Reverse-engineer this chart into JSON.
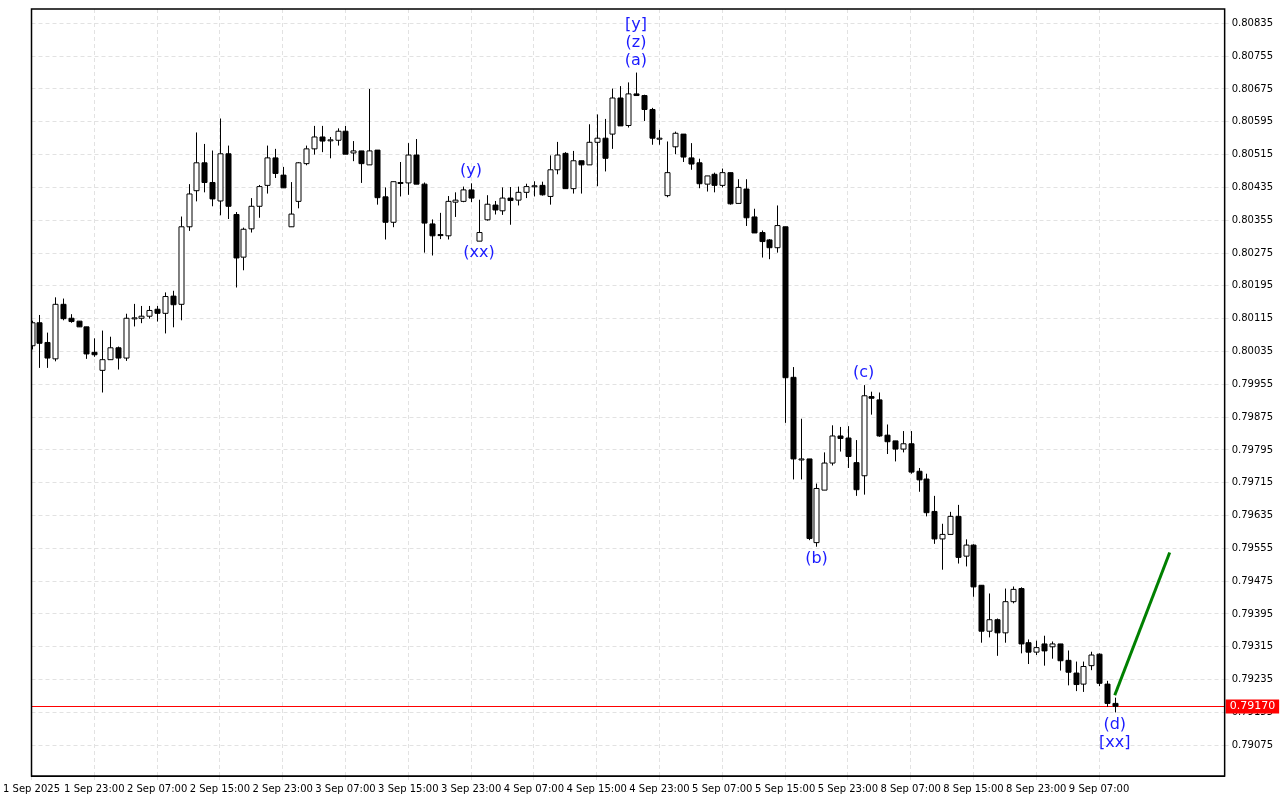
{
  "chart_data": {
    "type": "candlestick",
    "categories": [
      "1 Sep 2025",
      null,
      null,
      null,
      null,
      null,
      null,
      null,
      "1 Sep 23:00",
      null,
      null,
      null,
      null,
      null,
      null,
      null,
      "2 Sep 07:00",
      null,
      null,
      null,
      null,
      null,
      null,
      null,
      "2 Sep 15:00",
      null,
      null,
      null,
      null,
      null,
      null,
      null,
      "2 Sep 23:00",
      null,
      null,
      null,
      null,
      null,
      null,
      null,
      "3 Sep 07:00",
      null,
      null,
      null,
      null,
      null,
      null,
      null,
      "3 Sep 15:00",
      null,
      null,
      null,
      null,
      null,
      null,
      null,
      "3 Sep 23:00",
      null,
      null,
      null,
      null,
      null,
      null,
      null,
      "4 Sep 07:00",
      null,
      null,
      null,
      null,
      null,
      null,
      null,
      "4 Sep 15:00",
      null,
      null,
      null,
      null,
      null,
      null,
      null,
      "4 Sep 23:00",
      null,
      null,
      null,
      null,
      null,
      null,
      null,
      "5 Sep 07:00",
      null,
      null,
      null,
      null,
      null,
      null,
      null,
      "5 Sep 15:00",
      null,
      null,
      null,
      null,
      null,
      null,
      null,
      "5 Sep 23:00",
      null,
      null,
      null,
      null,
      null,
      null,
      null,
      "8 Sep 07:00",
      null,
      null,
      null,
      null,
      null,
      null,
      null,
      "8 Sep 15:00",
      null,
      null,
      null,
      null,
      null,
      null,
      null,
      "8 Sep 23:00",
      null,
      null,
      null,
      null,
      null,
      null,
      null,
      "9 Sep 07:00",
      null,
      null,
      null,
      null,
      null,
      null,
      null,
      null,
      null,
      null,
      null,
      null,
      null,
      null,
      null,
      null
    ],
    "ohlc": [
      [
        0.80049,
        0.8011,
        0.8004,
        0.80105
      ],
      [
        0.80105,
        0.80124,
        0.79995,
        0.80055
      ],
      [
        0.80057,
        0.80081,
        0.79995,
        0.80019
      ],
      [
        0.80017,
        0.80167,
        0.80011,
        0.8015
      ],
      [
        0.8015,
        0.80164,
        0.80111,
        0.80115
      ],
      [
        0.80116,
        0.80126,
        0.80105,
        0.80108
      ],
      [
        0.80109,
        0.80109,
        0.80095,
        0.80095
      ],
      [
        0.80095,
        0.80095,
        0.80017,
        0.80029
      ],
      [
        0.80033,
        0.80067,
        0.80022,
        0.80027
      ],
      [
        0.79989,
        0.80086,
        0.79935,
        0.80015
      ],
      [
        0.80015,
        0.80071,
        0.80015,
        0.80044
      ],
      [
        0.80044,
        0.80047,
        0.79991,
        0.80019
      ],
      [
        0.80019,
        0.80127,
        0.80012,
        0.80116
      ],
      [
        0.80116,
        0.80151,
        0.80096,
        0.80117
      ],
      [
        0.80116,
        0.80146,
        0.80104,
        0.80121
      ],
      [
        0.80121,
        0.80146,
        0.80115,
        0.80135
      ],
      [
        0.80138,
        0.80146,
        0.80108,
        0.80128
      ],
      [
        0.80128,
        0.80179,
        0.80079,
        0.80169
      ],
      [
        0.8017,
        0.80183,
        0.80094,
        0.80149
      ],
      [
        0.8015,
        0.80364,
        0.80111,
        0.80339
      ],
      [
        0.80339,
        0.80443,
        0.80329,
        0.80419
      ],
      [
        0.80427,
        0.80569,
        0.80401,
        0.80495
      ],
      [
        0.80495,
        0.80541,
        0.80423,
        0.80447
      ],
      [
        0.80447,
        0.80525,
        0.80389,
        0.80407
      ],
      [
        0.80402,
        0.80603,
        0.80367,
        0.80517
      ],
      [
        0.80517,
        0.80537,
        0.80358,
        0.80389
      ],
      [
        0.80369,
        0.80375,
        0.80191,
        0.80263
      ],
      [
        0.80265,
        0.80337,
        0.80233,
        0.80333
      ],
      [
        0.80334,
        0.80409,
        0.80325,
        0.80389
      ],
      [
        0.80389,
        0.80441,
        0.80361,
        0.80437
      ],
      [
        0.8044,
        0.80537,
        0.8042,
        0.80507
      ],
      [
        0.80507,
        0.80529,
        0.80458,
        0.80469
      ],
      [
        0.80465,
        0.80485,
        0.80434,
        0.80434
      ],
      [
        0.80339,
        0.80448,
        0.80339,
        0.8037
      ],
      [
        0.80401,
        0.80497,
        0.80384,
        0.80495
      ],
      [
        0.80493,
        0.80537,
        0.80489,
        0.80529
      ],
      [
        0.80529,
        0.80585,
        0.80515,
        0.80558
      ],
      [
        0.80558,
        0.80585,
        0.80521,
        0.80548
      ],
      [
        0.80551,
        0.80558,
        0.80506,
        0.80551
      ],
      [
        0.8055,
        0.80579,
        0.80537,
        0.80572
      ],
      [
        0.80572,
        0.80585,
        0.80516,
        0.80516
      ],
      [
        0.80519,
        0.80548,
        0.80499,
        0.80524
      ],
      [
        0.80524,
        0.80524,
        0.80446,
        0.80493
      ],
      [
        0.8049,
        0.80675,
        0.8049,
        0.80524
      ],
      [
        0.80526,
        0.80526,
        0.80393,
        0.8041
      ],
      [
        0.80412,
        0.80435,
        0.80308,
        0.8035
      ],
      [
        0.8035,
        0.80449,
        0.80338,
        0.80449
      ],
      [
        0.80446,
        0.80497,
        0.80413,
        0.80447
      ],
      [
        0.80446,
        0.80543,
        0.80417,
        0.80514
      ],
      [
        0.80514,
        0.80553,
        0.80443,
        0.80443
      ],
      [
        0.80443,
        0.80447,
        0.80276,
        0.80348
      ],
      [
        0.80346,
        0.80357,
        0.80269,
        0.80317
      ],
      [
        0.8032,
        0.80373,
        0.80309,
        0.80318
      ],
      [
        0.80317,
        0.80414,
        0.80308,
        0.80401
      ],
      [
        0.80399,
        0.80423,
        0.80363,
        0.80404
      ],
      [
        0.80401,
        0.80437,
        0.80399,
        0.80429
      ],
      [
        0.80429,
        0.80445,
        0.80399,
        0.80409
      ],
      [
        0.80304,
        0.80405,
        0.80304,
        0.80325
      ],
      [
        0.80356,
        0.80416,
        0.80354,
        0.80394
      ],
      [
        0.80392,
        0.80402,
        0.80369,
        0.8038
      ],
      [
        0.80378,
        0.80435,
        0.80368,
        0.80409
      ],
      [
        0.80409,
        0.80436,
        0.80344,
        0.80403
      ],
      [
        0.80404,
        0.80437,
        0.80391,
        0.80423
      ],
      [
        0.80423,
        0.80444,
        0.80409,
        0.80437
      ],
      [
        0.80438,
        0.8045,
        0.80413,
        0.80439
      ],
      [
        0.8044,
        0.80449,
        0.80415,
        0.80417
      ],
      [
        0.80413,
        0.80513,
        0.80393,
        0.80478
      ],
      [
        0.80478,
        0.80546,
        0.80467,
        0.80514
      ],
      [
        0.80518,
        0.80521,
        0.80432,
        0.80432
      ],
      [
        0.80432,
        0.80524,
        0.8042,
        0.805
      ],
      [
        0.805,
        0.805,
        0.8042,
        0.8049
      ],
      [
        0.8049,
        0.80589,
        0.8049,
        0.80545
      ],
      [
        0.80545,
        0.80613,
        0.80438,
        0.80555
      ],
      [
        0.80555,
        0.80602,
        0.80474,
        0.80506
      ],
      [
        0.80565,
        0.80676,
        0.80529,
        0.80653
      ],
      [
        0.80653,
        0.80682,
        0.80585,
        0.80585
      ],
      [
        0.80586,
        0.80691,
        0.80581,
        0.80663
      ],
      [
        0.80663,
        0.80715,
        0.80659,
        0.80659
      ],
      [
        0.80659,
        0.80661,
        0.80597,
        0.80625
      ],
      [
        0.80625,
        0.80629,
        0.80539,
        0.80555
      ],
      [
        0.80555,
        0.80575,
        0.80539,
        0.80555
      ],
      [
        0.80415,
        0.80547,
        0.80411,
        0.80471
      ],
      [
        0.80534,
        0.80571,
        0.80516,
        0.80567
      ],
      [
        0.80565,
        0.80565,
        0.80497,
        0.80509
      ],
      [
        0.80507,
        0.80543,
        0.80478,
        0.80492
      ],
      [
        0.80495,
        0.80505,
        0.80433,
        0.80444
      ],
      [
        0.80443,
        0.80463,
        0.80425,
        0.80463
      ],
      [
        0.80467,
        0.80471,
        0.80423,
        0.8044
      ],
      [
        0.8044,
        0.80481,
        0.80435,
        0.80471
      ],
      [
        0.80471,
        0.80471,
        0.80393,
        0.80395
      ],
      [
        0.80396,
        0.80455,
        0.80396,
        0.80435
      ],
      [
        0.80431,
        0.80455,
        0.80341,
        0.80361
      ],
      [
        0.80363,
        0.80383,
        0.80324,
        0.80324
      ],
      [
        0.80325,
        0.8033,
        0.80264,
        0.80303
      ],
      [
        0.80307,
        0.80309,
        0.8026,
        0.80288
      ],
      [
        0.80288,
        0.80391,
        0.80276,
        0.80342
      ],
      [
        0.80339,
        0.80339,
        0.79861,
        0.79971
      ],
      [
        0.79972,
        0.79997,
        0.79723,
        0.79773
      ],
      [
        0.79773,
        0.79871,
        0.79723,
        0.79773
      ],
      [
        0.79773,
        0.79773,
        0.79575,
        0.79579
      ],
      [
        0.79569,
        0.79713,
        0.79559,
        0.79701
      ],
      [
        0.79697,
        0.79789,
        0.79697,
        0.79763
      ],
      [
        0.79763,
        0.79855,
        0.79757,
        0.79829
      ],
      [
        0.79829,
        0.79851,
        0.79791,
        0.79823
      ],
      [
        0.79824,
        0.79853,
        0.79751,
        0.79779
      ],
      [
        0.79764,
        0.79819,
        0.79683,
        0.79698
      ],
      [
        0.79732,
        0.79953,
        0.79686,
        0.79927
      ],
      [
        0.79925,
        0.79937,
        0.79881,
        0.79921
      ],
      [
        0.79917,
        0.79935,
        0.79827,
        0.79829
      ],
      [
        0.79831,
        0.79857,
        0.79785,
        0.79815
      ],
      [
        0.79817,
        0.79817,
        0.79767,
        0.79797
      ],
      [
        0.79797,
        0.79841,
        0.79789,
        0.7981
      ],
      [
        0.7981,
        0.79841,
        0.79737,
        0.79741
      ],
      [
        0.79743,
        0.79751,
        0.79693,
        0.79722
      ],
      [
        0.79724,
        0.79737,
        0.79633,
        0.79642
      ],
      [
        0.79645,
        0.79683,
        0.79566,
        0.79578
      ],
      [
        0.79578,
        0.79615,
        0.79503,
        0.79589
      ],
      [
        0.79589,
        0.79644,
        0.79589,
        0.79633
      ],
      [
        0.79633,
        0.79661,
        0.79518,
        0.79533
      ],
      [
        0.79536,
        0.79577,
        0.79511,
        0.79563
      ],
      [
        0.79563,
        0.79565,
        0.79437,
        0.79461
      ],
      [
        0.79465,
        0.79465,
        0.79325,
        0.79353
      ],
      [
        0.79353,
        0.79445,
        0.79338,
        0.79381
      ],
      [
        0.79381,
        0.79384,
        0.79293,
        0.79349
      ],
      [
        0.79349,
        0.79457,
        0.79325,
        0.79425
      ],
      [
        0.79425,
        0.79462,
        0.79421,
        0.79455
      ],
      [
        0.79457,
        0.7946,
        0.79299,
        0.79322
      ],
      [
        0.79325,
        0.79333,
        0.79273,
        0.79302
      ],
      [
        0.79302,
        0.7933,
        0.79295,
        0.79313
      ],
      [
        0.79322,
        0.79342,
        0.79269,
        0.79305
      ],
      [
        0.79315,
        0.79328,
        0.79286,
        0.79322
      ],
      [
        0.79322,
        0.79322,
        0.79257,
        0.79281
      ],
      [
        0.79282,
        0.79306,
        0.79221,
        0.79253
      ],
      [
        0.79251,
        0.79279,
        0.79207,
        0.79223
      ],
      [
        0.79224,
        0.79279,
        0.79205,
        0.79267
      ],
      [
        0.79269,
        0.79303,
        0.79258,
        0.79295
      ],
      [
        0.79297,
        0.79299,
        0.79219,
        0.79226
      ],
      [
        0.79224,
        0.79232,
        0.79169,
        0.79177
      ],
      [
        0.79177,
        0.79191,
        0.79155,
        0.7917
      ],
      null,
      null,
      null,
      null,
      null,
      null,
      null,
      null,
      null,
      null,
      null,
      null,
      null,
      null
    ],
    "series": [
      {
        "type": "line",
        "color": "#008000",
        "values": [
          null,
          null,
          null,
          null,
          null,
          null,
          null,
          null,
          null,
          null,
          null,
          null,
          null,
          null,
          null,
          null,
          null,
          null,
          null,
          null,
          null,
          null,
          null,
          null,
          null,
          null,
          null,
          null,
          null,
          null,
          null,
          null,
          null,
          null,
          null,
          null,
          null,
          null,
          null,
          null,
          null,
          null,
          null,
          null,
          null,
          null,
          null,
          null,
          null,
          null,
          null,
          null,
          null,
          null,
          null,
          null,
          null,
          null,
          null,
          null,
          null,
          null,
          null,
          null,
          null,
          null,
          null,
          null,
          null,
          null,
          null,
          null,
          null,
          null,
          null,
          null,
          null,
          null,
          null,
          null,
          null,
          null,
          null,
          null,
          null,
          null,
          null,
          null,
          null,
          null,
          null,
          null,
          null,
          null,
          null,
          null,
          null,
          null,
          null,
          null,
          null,
          null,
          null,
          null,
          null,
          null,
          null,
          null,
          null,
          null,
          null,
          null,
          null,
          null,
          null,
          null,
          null,
          null,
          null,
          null,
          null,
          null,
          null,
          null,
          null,
          null,
          null,
          null,
          null,
          null,
          null,
          null,
          null,
          null,
          null,
          null,
          null,
          null,
          0.79197,
          null,
          null,
          null,
          null,
          null,
          null,
          0.79545,
          null,
          null,
          null,
          null,
          null,
          null,
          null
        ]
      }
    ],
    "ylim": [
      0.79,
      0.8087
    ],
    "yticks": [
      0.79075,
      0.79155,
      0.79235,
      0.79315,
      0.79395,
      0.79475,
      0.79555,
      0.79635,
      0.79715,
      0.79795,
      0.79875,
      0.79955,
      0.80035,
      0.80115,
      0.80195,
      0.80275,
      0.80355,
      0.80435,
      0.80515,
      0.80595,
      0.80675,
      0.80755,
      0.80835
    ],
    "grid": true,
    "ref_lines": [
      {
        "axis": "y",
        "value": 0.7917,
        "label": "0.79170",
        "color": "#ff0000"
      }
    ],
    "annotations": [
      {
        "text": "[y]",
        "y": 0.80715
      },
      {
        "text": "(z)",
        "y": 0.80715
      },
      {
        "text": "(a)",
        "y": 0.80715
      },
      {
        "text": "(y)",
        "y": 0.80445
      },
      {
        "text": "(xx)",
        "y": 0.80304
      },
      {
        "text": "(b)",
        "y": 0.79559
      },
      {
        "text": "(c)",
        "y": 0.79953
      },
      {
        "text": "(d)",
        "y": 0.79155
      },
      {
        "text": "[xx]",
        "y": 0.79155
      }
    ]
  }
}
